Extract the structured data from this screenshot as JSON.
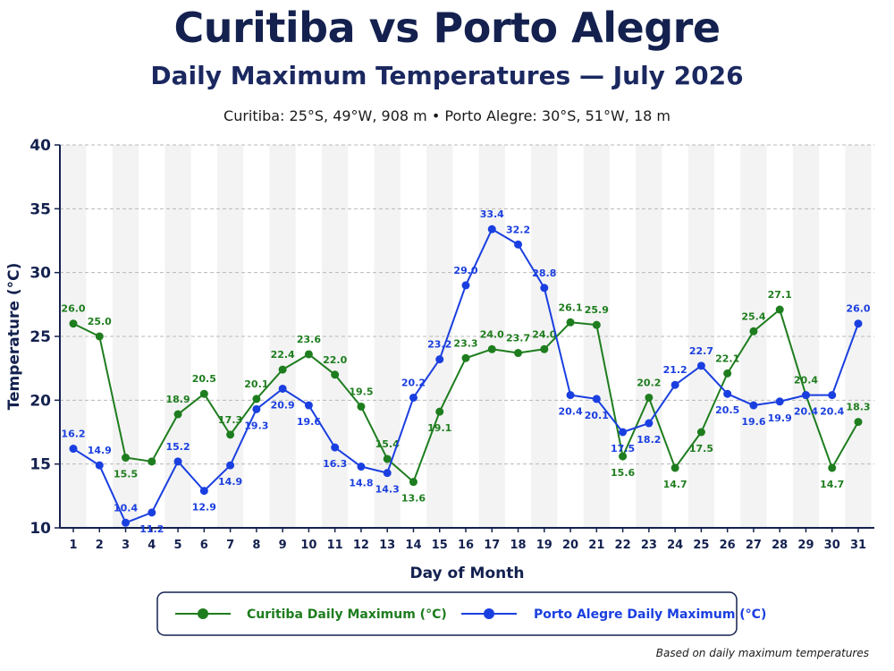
{
  "header": {
    "title": "Curitiba vs Porto Alegre",
    "subtitle": "Daily Maximum Temperatures — July 2026",
    "caption": "Curitiba: 25°S, 49°W, 908 m   •   Porto Alegre: 30°S, 51°W, 18 m"
  },
  "footnote": "Based on daily maximum temperatures",
  "chart_data": {
    "type": "line",
    "title": "Curitiba vs Porto Alegre",
    "subtitle": "Daily Maximum Temperatures — July 2026",
    "xlabel": "Day of Month",
    "ylabel": "Temperature (°C)",
    "x": [
      1,
      2,
      3,
      4,
      5,
      6,
      7,
      8,
      9,
      10,
      11,
      12,
      13,
      14,
      15,
      16,
      17,
      18,
      19,
      20,
      21,
      22,
      23,
      24,
      25,
      26,
      27,
      28,
      29,
      30,
      31
    ],
    "xlim": [
      1,
      31
    ],
    "ylim": [
      10,
      40
    ],
    "yticks": [
      10,
      15,
      20,
      25,
      30,
      35,
      40
    ],
    "grid": "horizontal dashed",
    "legend_position": "bottom",
    "series": [
      {
        "name": "Curitiba Daily Maximum (°C)",
        "color": "#1e7d1e",
        "values": [
          26.0,
          25.0,
          15.5,
          15.2,
          18.9,
          20.5,
          17.3,
          20.1,
          22.4,
          23.6,
          22.0,
          19.5,
          15.4,
          13.6,
          19.1,
          23.3,
          24.0,
          23.7,
          24.0,
          26.1,
          25.9,
          15.6,
          20.2,
          14.7,
          17.5,
          22.1,
          25.4,
          27.1,
          20.4,
          14.7,
          18.3
        ],
        "labels": [
          "26.0",
          "25.0",
          "15.5",
          "",
          "18.9",
          "20.5",
          "17.3",
          "20.1",
          "22.4",
          "23.6",
          "22.0",
          "19.5",
          "15.4",
          "13.6",
          "19.1",
          "23.3",
          "24.0",
          "23.7",
          "24.0",
          "26.1",
          "25.9",
          "15.6",
          "20.2",
          "14.7",
          "17.5",
          "22.1",
          "25.4",
          "27.1",
          "20.4",
          "14.7",
          "18.3"
        ]
      },
      {
        "name": "Porto Alegre Daily Maximum (°C)",
        "color": "#1a3fe0",
        "values": [
          16.2,
          14.9,
          10.4,
          11.2,
          15.2,
          12.9,
          14.9,
          19.3,
          20.9,
          19.6,
          16.3,
          14.8,
          14.3,
          20.2,
          23.2,
          29.0,
          33.4,
          32.2,
          28.8,
          20.4,
          20.1,
          17.5,
          18.2,
          21.2,
          22.7,
          20.5,
          19.6,
          19.9,
          20.4,
          20.4,
          26.0
        ],
        "labels": [
          "16.2",
          "14.9",
          "10.4",
          "11.2",
          "15.2",
          "12.9",
          "14.9",
          "19.3",
          "20.9",
          "19.6",
          "16.3",
          "14.8",
          "14.3",
          "20.2",
          "23.2",
          "29.0",
          "33.4",
          "32.2",
          "28.8",
          "20.4",
          "20.1",
          "17.5",
          "18.2",
          "21.2",
          "22.7",
          "20.5",
          "19.6",
          "19.9",
          "20.4",
          "20.4",
          "26.0"
        ]
      }
    ]
  }
}
